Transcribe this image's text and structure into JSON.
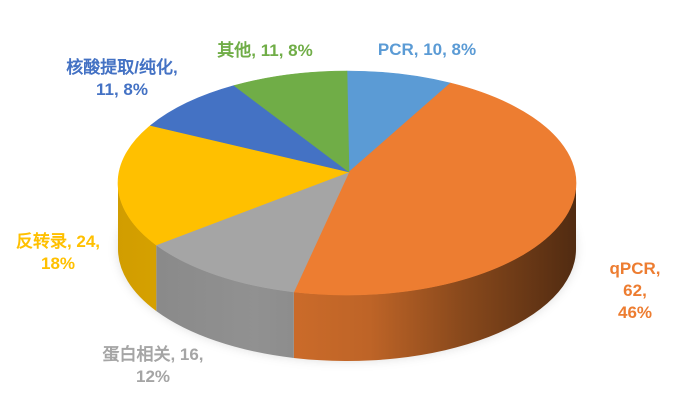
{
  "chart_data": {
    "type": "pie",
    "style": "3d",
    "title": "",
    "legend": "none",
    "background": "#FFFFFF",
    "direction": "clockwise",
    "start_angle_deg": 0,
    "total": 134,
    "label_format": "name, value, percent",
    "slices": [
      {
        "name": "PCR",
        "value": 10,
        "percent": "8%",
        "color": "#5B9BD5",
        "label": "PCR, 10, 8%"
      },
      {
        "name": "qPCR",
        "value": 62,
        "percent": "46%",
        "color": "#ED7D31",
        "label": "qPCR, 62, 46%"
      },
      {
        "name": "蛋白相关",
        "value": 16,
        "percent": "12%",
        "color": "#A5A5A5",
        "label": "蛋白相关, 16,\n12%"
      },
      {
        "name": "反转录",
        "value": 24,
        "percent": "18%",
        "color": "#FFC000",
        "label": "反转录, 24,\n18%"
      },
      {
        "name": "核酸提取/纯化",
        "value": 11,
        "percent": "8%",
        "color": "#4472C4",
        "label": "核酸提取/纯化,\n11, 8%"
      },
      {
        "name": "其他",
        "value": 11,
        "percent": "8%",
        "color": "#70AD47",
        "label": "其他, 11, 8%"
      }
    ]
  }
}
